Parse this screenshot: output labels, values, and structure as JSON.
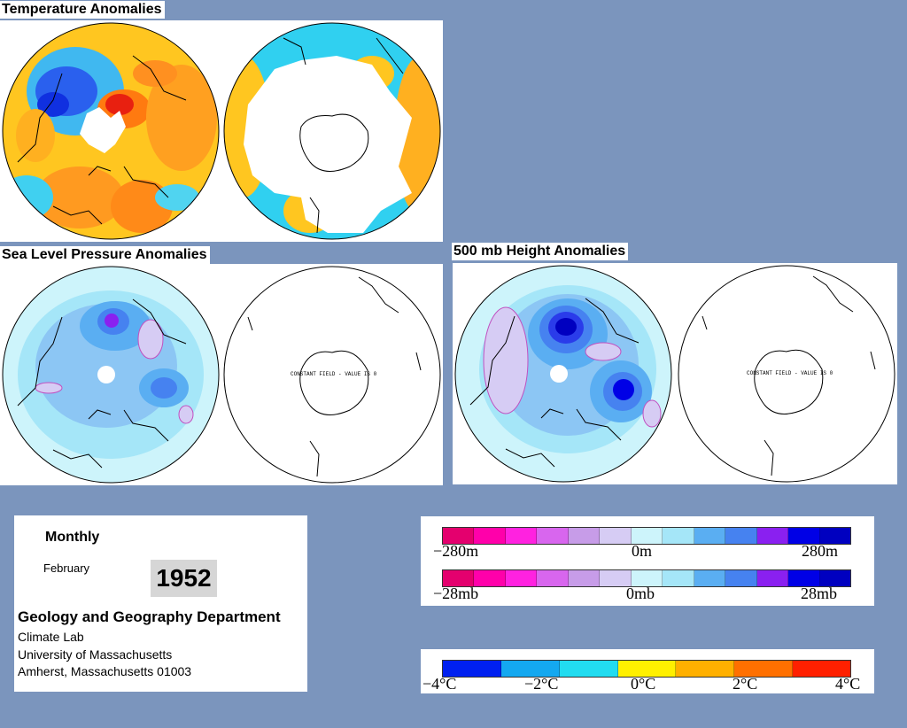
{
  "titles": {
    "temperature": "Temperature Anomalies",
    "slp": "Sea Level Pressure Anomalies",
    "height500": "500 mb Height Anomalies"
  },
  "constant_field_note": "CONSTANT FIELD - VALUE IS 0",
  "info": {
    "frequency": "Monthly",
    "month": "February",
    "year": "1952",
    "department": "Geology and Geography Department",
    "lab": "Climate Lab",
    "university": "University of Massachusetts",
    "address": "Amherst, Massachusetts 01003"
  },
  "legends": {
    "height": {
      "min": "−280m",
      "mid": "0m",
      "max": "280m"
    },
    "pressure": {
      "min": "−28mb",
      "mid": "0mb",
      "max": "28mb"
    },
    "temperature": {
      "t1": "−4°C",
      "t2": "−2°C",
      "t3": "0°C",
      "t4": "2°C",
      "t5": "4°C"
    }
  },
  "colors": {
    "background": "#7b95bd",
    "anomaly_scale_negative_to_positive": [
      "#e4006e",
      "#ff00aa",
      "#ff22e0",
      "#d866ee",
      "#c79ce8",
      "#d6ccf4",
      "#cdf4fb",
      "#a5e6f8",
      "#5aaef2",
      "#4682f0",
      "#8a20f0",
      "#0000e6",
      "#0000c0"
    ],
    "temperature_scale": [
      "#0020f0",
      "#14a8f0",
      "#22dcf0",
      "#fff000",
      "#ffb000",
      "#ff7000",
      "#ff2000"
    ]
  }
}
